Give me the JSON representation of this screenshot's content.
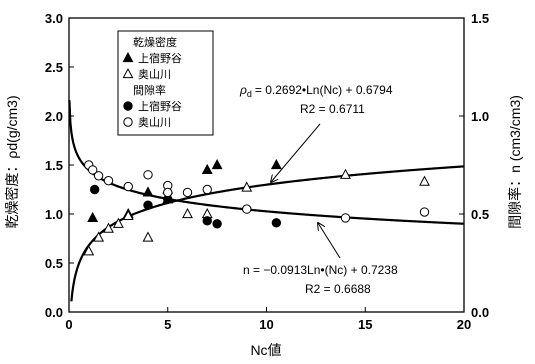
{
  "chart_data": {
    "type": "scatter",
    "xlabel": "Nc値",
    "ylabel_left": "乾燥密度：ρd(g/cm3)",
    "ylabel_right": "間隙率：n (cm3/cm3)",
    "xlim": [
      0,
      20
    ],
    "ylim_left": [
      0.0,
      3.0
    ],
    "ylim_right": [
      0.0,
      1.5
    ],
    "x_ticks": [
      "0",
      "5",
      "10",
      "15",
      "20"
    ],
    "y_left_ticks": [
      "0.0",
      "0.5",
      "1.0",
      "1.5",
      "2.0",
      "2.5",
      "3.0"
    ],
    "y_right_ticks": [
      "0.0",
      "0.5",
      "1.0",
      "1.5"
    ],
    "grid": false,
    "legend": {
      "placement": "top-left",
      "group1_title": "乾燥密度",
      "group2_title": "間隙率",
      "entries": [
        {
          "marker": "filled-triangle",
          "label": "上宿野谷"
        },
        {
          "marker": "open-triangle",
          "label": "奥山川"
        },
        {
          "marker": "filled-circle",
          "label": "上宿野谷"
        },
        {
          "marker": "open-circle",
          "label": "奥山川"
        }
      ]
    },
    "series": [
      {
        "group": "乾燥密度",
        "site": "上宿野谷",
        "marker": "filled-triangle",
        "axis": "left",
        "points": [
          [
            1.2,
            0.96
          ],
          [
            3.0,
            1.0
          ],
          [
            4.0,
            1.22
          ],
          [
            5.0,
            1.15
          ],
          [
            7.0,
            1.45
          ],
          [
            7.5,
            1.5
          ],
          [
            10.5,
            1.5
          ]
        ]
      },
      {
        "group": "乾燥密度",
        "site": "奥山川",
        "marker": "open-triangle",
        "axis": "left",
        "points": [
          [
            1.0,
            0.62
          ],
          [
            1.5,
            0.76
          ],
          [
            2.0,
            0.85
          ],
          [
            2.5,
            0.9
          ],
          [
            3.0,
            0.98
          ],
          [
            4.0,
            0.76
          ],
          [
            5.0,
            1.25
          ],
          [
            6.0,
            1.0
          ],
          [
            7.0,
            1.0
          ],
          [
            9.0,
            1.27
          ],
          [
            14.0,
            1.4
          ],
          [
            18.0,
            1.33
          ]
        ]
      },
      {
        "group": "間隙率",
        "site": "上宿野谷",
        "marker": "filled-circle",
        "axis": "right",
        "points": [
          [
            1.3,
            0.625
          ],
          [
            4.0,
            0.545
          ],
          [
            5.0,
            0.575
          ],
          [
            7.0,
            0.465
          ],
          [
            7.5,
            0.45
          ],
          [
            10.5,
            0.455
          ]
        ]
      },
      {
        "group": "間隙率",
        "site": "奥山川",
        "marker": "open-circle",
        "axis": "right",
        "points": [
          [
            1.0,
            0.75
          ],
          [
            1.2,
            0.725
          ],
          [
            1.5,
            0.695
          ],
          [
            2.0,
            0.67
          ],
          [
            3.0,
            0.64
          ],
          [
            4.0,
            0.7
          ],
          [
            5.0,
            0.645
          ],
          [
            5.0,
            0.61
          ],
          [
            6.0,
            0.61
          ],
          [
            7.0,
            0.625
          ],
          [
            9.0,
            0.525
          ],
          [
            14.0,
            0.48
          ],
          [
            18.0,
            0.51
          ]
        ]
      }
    ],
    "fits": [
      {
        "axis": "left",
        "a": 0.2692,
        "b": 0.6794,
        "equation": "= 0.2692•Ln(Nc) + 0.6794",
        "r2": "R2 = 0.6711"
      },
      {
        "axis": "right",
        "a": -0.0913,
        "b": 0.7238,
        "equation": "n = −0.0913Ln•(Nc) + 0.7238",
        "r2": "R2 = 0.6688"
      }
    ]
  }
}
